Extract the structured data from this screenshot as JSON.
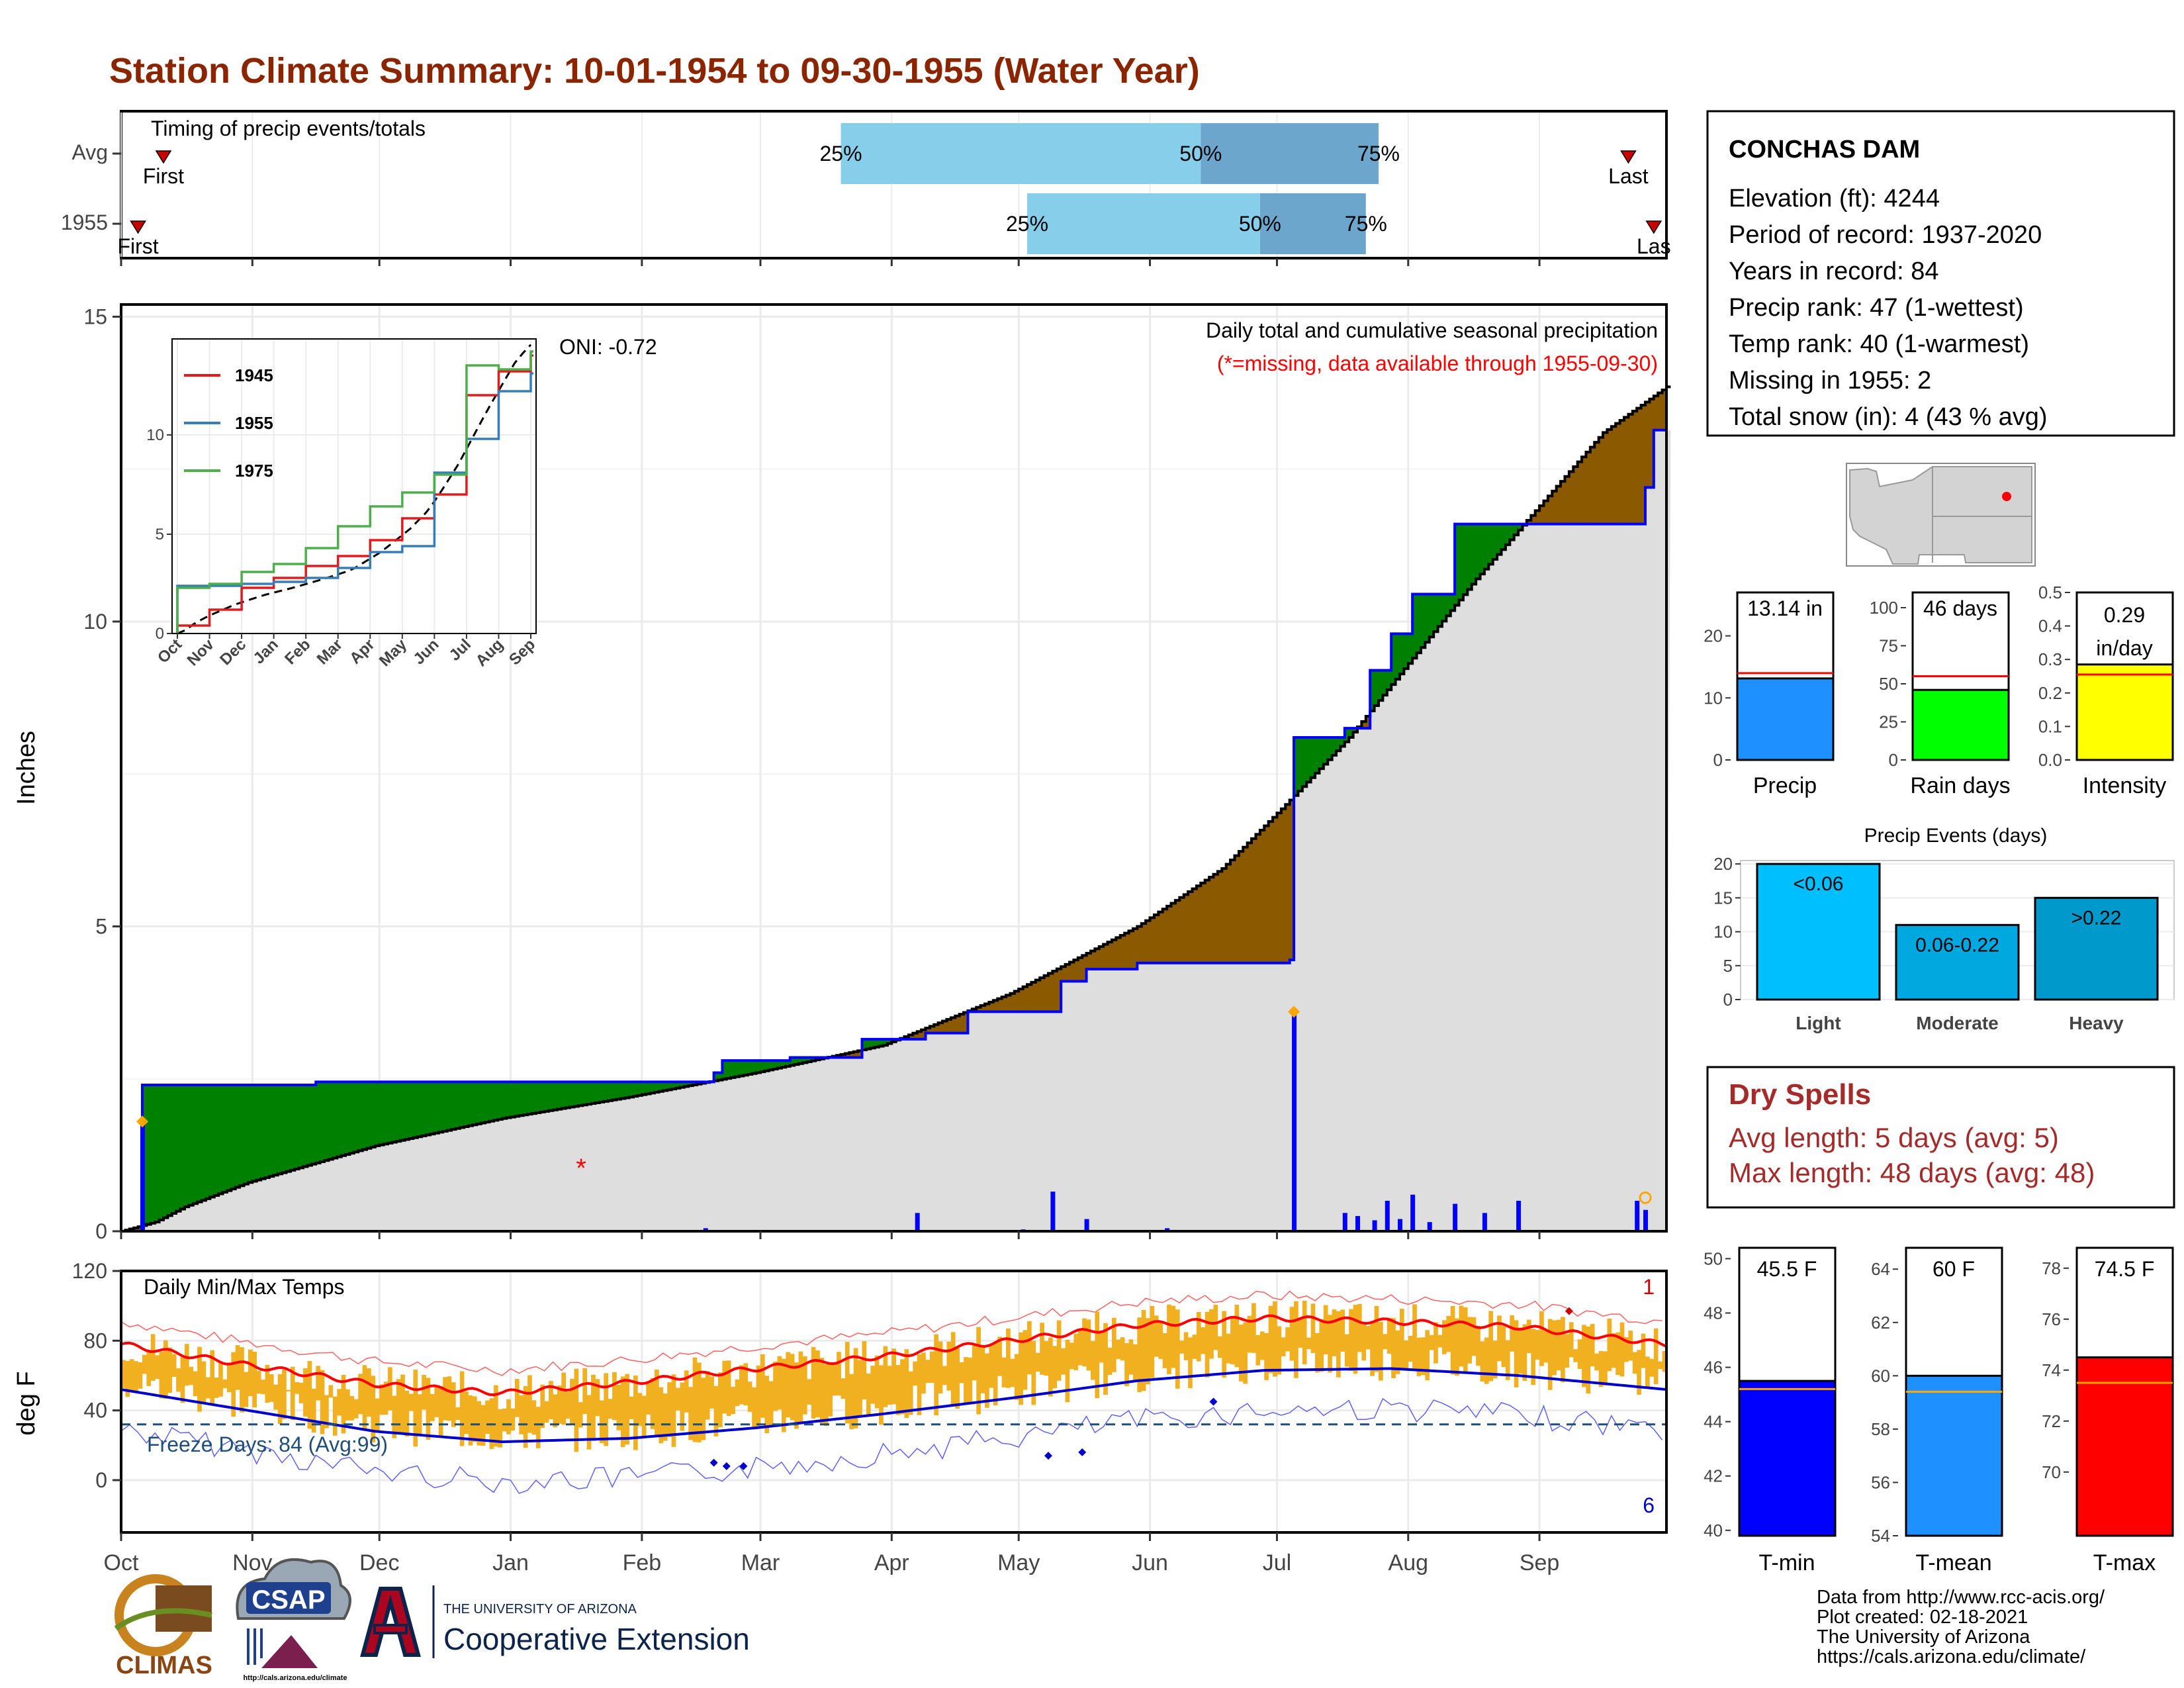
{
  "page": {
    "title": "Station Climate Summary: 10-01-1954 to 09-30-1955 (Water Year)",
    "title_color": "#8B2500"
  },
  "timing": {
    "title": "Timing of precip events/totals",
    "rows": [
      {
        "label": "Avg",
        "first_label": "First",
        "last_label": "Last",
        "first_doy": 10,
        "last_doy": 356,
        "p25_doy": 170,
        "p50_doy": 255,
        "p75_doy": 297,
        "p25_label": "25%",
        "p50_label": "50%",
        "p75_label": "75%"
      },
      {
        "label": "1955",
        "first_label": "First",
        "last_label": "Las",
        "first_doy": 4,
        "last_doy": 362,
        "p25_doy": 214,
        "p50_doy": 269,
        "p75_doy": 294,
        "p25_label": "25%",
        "p50_label": "50%",
        "p75_label": "75%"
      }
    ],
    "colors": {
      "light": "#87CEEB",
      "dark": "#6CA6CD",
      "marker": "#CC0000"
    }
  },
  "station": {
    "name": "CONCHAS DAM",
    "lines": [
      "Elevation (ft): 4244",
      "Period of record: 1937-2020",
      "Years in record: 84",
      "Precip rank: 47 (1-wettest)",
      "Temp rank: 40 (1-warmest)",
      "Missing in 1955: 2",
      "Total snow (in): 4 (43 % avg)"
    ]
  },
  "precip_panel": {
    "ylabel": "Inches",
    "yticks": [
      0,
      5,
      10,
      15
    ],
    "ylim": [
      0,
      15.2
    ],
    "legend_title": "Daily total and cumulative seasonal precipitation",
    "missing_note": "(*=missing, data available through 1955-09-30)",
    "oni": "ONI: -0.72",
    "colors": {
      "avg": "#000000",
      "obs": "#0000FF",
      "above": "#008000",
      "below": "#8B5A00",
      "fill": "#DEDEDE",
      "bars": "#0000FF"
    }
  },
  "inset": {
    "yticks": [
      0,
      5,
      10
    ],
    "xticks": [
      "Oct",
      "Nov",
      "Dec",
      "Jan",
      "Feb",
      "Mar",
      "Apr",
      "May",
      "Jun",
      "Jul",
      "Aug",
      "Sep"
    ],
    "legend": [
      {
        "name": "1945",
        "color": "#E41A1C"
      },
      {
        "name": "1955",
        "color": "#377EB8"
      },
      {
        "name": "1975",
        "color": "#4DAF4A"
      }
    ]
  },
  "temp_panel": {
    "ylabel": "deg F",
    "title": "Daily Min/Max Temps",
    "yticks": [
      0,
      40,
      80,
      120
    ],
    "freeze_label": "Freeze Days: 84 (Avg:99)",
    "record_high_count": "1",
    "record_low_count": "6",
    "colors": {
      "bars": "#F0B020",
      "avg_max": "#FF0000",
      "avg_min": "#0000CD",
      "freeze": "#1F4E79"
    }
  },
  "months": [
    "Oct",
    "Nov",
    "Dec",
    "Jan",
    "Feb",
    "Mar",
    "Apr",
    "May",
    "Jun",
    "Jul",
    "Aug",
    "Sep"
  ],
  "bar_panels": {
    "precip": {
      "label": "Precip",
      "value_label": "13.14 in",
      "value": 13.14,
      "avg": 14.0,
      "yticks": [
        0,
        10,
        20
      ],
      "ylim": [
        0,
        27
      ],
      "color": "#1E90FF"
    },
    "raindays": {
      "label": "Rain days",
      "value_label": "46 days",
      "value": 46,
      "avg": 55,
      "yticks": [
        0,
        25,
        50,
        75,
        100
      ],
      "ylim": [
        0,
        110
      ],
      "color": "#00FF00"
    },
    "intensity": {
      "label": "Intensity",
      "value_label_1": "0.29",
      "value_label_2": "in/day",
      "value": 0.285,
      "avg": 0.255,
      "yticks": [
        "0.0",
        "0.1",
        "0.2",
        "0.3",
        "0.4",
        "0.5"
      ],
      "ylim": [
        0,
        0.5
      ],
      "color": "#FFFF00"
    }
  },
  "events": {
    "title": "Precip Events (days)",
    "yticks": [
      0,
      5,
      10,
      15,
      20
    ],
    "ylim": [
      0,
      20.5
    ],
    "bars": [
      {
        "name": "Light",
        "label": "<0.06",
        "value": 20,
        "color": "#00BFFF"
      },
      {
        "name": "Moderate",
        "label": "0.06-0.22",
        "value": 11,
        "color": "#00A8E0"
      },
      {
        "name": "Heavy",
        "label": ">0.22",
        "value": 15,
        "color": "#0099CC"
      }
    ]
  },
  "dry_spells": {
    "title": "Dry Spells",
    "line1": "Avg length: 5 days (avg: 5)",
    "line2": "Max length: 48 days (avg: 48)",
    "color": "#A52A2A"
  },
  "temp_bars": {
    "tmin": {
      "label": "T-min",
      "value_label": "45.5 F",
      "value": 45.5,
      "avg": 45.2,
      "yticks": [
        40,
        42,
        44,
        46,
        48,
        50
      ],
      "ylim": [
        39.8,
        50.4
      ],
      "color": "#0000FF"
    },
    "tmean": {
      "label": "T-mean",
      "value_label": "60 F",
      "value": 60,
      "avg": 59.4,
      "yticks": [
        54,
        56,
        58,
        60,
        62,
        64
      ],
      "ylim": [
        54,
        64.8
      ],
      "color": "#1E90FF"
    },
    "tmax": {
      "label": "T-max",
      "value_label": "74.5 F",
      "value": 74.5,
      "avg": 73.5,
      "yticks": [
        70,
        72,
        74,
        76,
        78
      ],
      "ylim": [
        67.5,
        78.8
      ],
      "color": "#FF0000"
    }
  },
  "footer": {
    "lines": [
      "Data from http://www.rcc-acis.org/",
      "Plot created: 02-18-2021",
      "The University of Arizona",
      "https://cals.arizona.edu/climate/"
    ],
    "logo_climas": "CLIMAS",
    "logo_csap": "CSAP",
    "logo_csap_url": "http://cals.arizona.edu/climate",
    "ua_small": "THE UNIVERSITY OF ARIZONA",
    "ua_big": "Cooperative Extension"
  },
  "chart_data": [
    {
      "type": "line",
      "title": "Daily total and cumulative seasonal precipitation",
      "ylabel": "Inches",
      "x_unit": "day of water year",
      "ylim": [
        0,
        15.2
      ],
      "series": [
        {
          "name": "avg_cumulative",
          "x": [
            0,
            8,
            15,
            30,
            60,
            90,
            120,
            150,
            180,
            210,
            240,
            260,
            275,
            290,
            305,
            320,
            335,
            350,
            365
          ],
          "values": [
            0,
            0.15,
            0.4,
            0.8,
            1.4,
            1.85,
            2.2,
            2.6,
            3.05,
            3.9,
            5.0,
            5.95,
            7.0,
            8.1,
            9.4,
            10.7,
            11.9,
            13.1,
            13.85
          ]
        },
        {
          "name": "1955_cumulative",
          "x": [
            0,
            5,
            40,
            46,
            140,
            142,
            150,
            158,
            175,
            190,
            200,
            222,
            228,
            240,
            276,
            277,
            289,
            295,
            300,
            305,
            315,
            360,
            362,
            365
          ],
          "values": [
            0,
            2.4,
            2.4,
            2.45,
            2.6,
            2.8,
            2.8,
            2.85,
            3.15,
            3.25,
            3.6,
            4.1,
            4.3,
            4.4,
            4.45,
            8.1,
            8.25,
            9.2,
            9.8,
            10.45,
            11.6,
            12.2,
            13.14,
            13.14
          ]
        }
      ]
    },
    {
      "type": "bar",
      "name": "daily precip",
      "x_unit": "day of water year",
      "x": [
        5,
        48,
        53,
        95,
        138,
        188,
        208,
        213,
        220,
        228,
        235,
        240,
        247,
        261,
        277,
        289,
        292,
        296,
        299,
        302,
        305,
        309,
        315,
        322,
        330,
        358,
        360
      ],
      "values": [
        1.8,
        0.02,
        0.02,
        0.02,
        0.05,
        0.3,
        0.02,
        0.03,
        0.65,
        0.2,
        0.02,
        0.02,
        0.05,
        0.02,
        3.6,
        0.3,
        0.25,
        0.18,
        0.5,
        0.2,
        0.6,
        0.15,
        0.45,
        0.3,
        0.5,
        0.5,
        0.35
      ]
    },
    {
      "type": "line",
      "title": "Daily Min/Max Temps",
      "ylabel": "deg F",
      "x_unit": "day of water year",
      "ylim": [
        -30,
        120
      ],
      "series": [
        {
          "name": "avg_max",
          "x": [
            0,
            30,
            60,
            90,
            120,
            150,
            180,
            210,
            240,
            270,
            300,
            330,
            365
          ],
          "values": [
            78,
            66,
            55,
            50,
            56,
            64,
            71,
            80,
            89,
            93,
            91,
            88,
            78
          ]
        },
        {
          "name": "avg_min",
          "x": [
            0,
            30,
            60,
            90,
            120,
            150,
            180,
            210,
            240,
            270,
            300,
            330,
            365
          ],
          "values": [
            52,
            40,
            28,
            22,
            24,
            30,
            38,
            47,
            57,
            63,
            64,
            60,
            52
          ]
        },
        {
          "name": "freeze_line",
          "x": [
            0,
            365
          ],
          "values": [
            32,
            32
          ]
        }
      ]
    },
    {
      "type": "line",
      "title": "",
      "x": [
        "Oct",
        "Nov",
        "Dec",
        "Jan",
        "Feb",
        "Mar",
        "Apr",
        "May",
        "Jun",
        "Jul",
        "Aug",
        "Sep"
      ],
      "ylim": [
        0,
        14.5
      ],
      "series": [
        {
          "name": "1945",
          "values": [
            0.4,
            1.2,
            2.3,
            2.8,
            3.4,
            3.9,
            4.7,
            5.8,
            7.0,
            12.0,
            13.2,
            14.0
          ]
        },
        {
          "name": "1955",
          "values": [
            2.4,
            2.4,
            2.5,
            2.6,
            2.8,
            3.3,
            4.1,
            4.4,
            8.1,
            9.8,
            12.2,
            13.1
          ]
        },
        {
          "name": "1975",
          "values": [
            2.3,
            2.5,
            3.1,
            3.5,
            4.3,
            5.4,
            6.4,
            7.1,
            8.0,
            13.5,
            13.3,
            14.2
          ]
        }
      ]
    }
  ]
}
